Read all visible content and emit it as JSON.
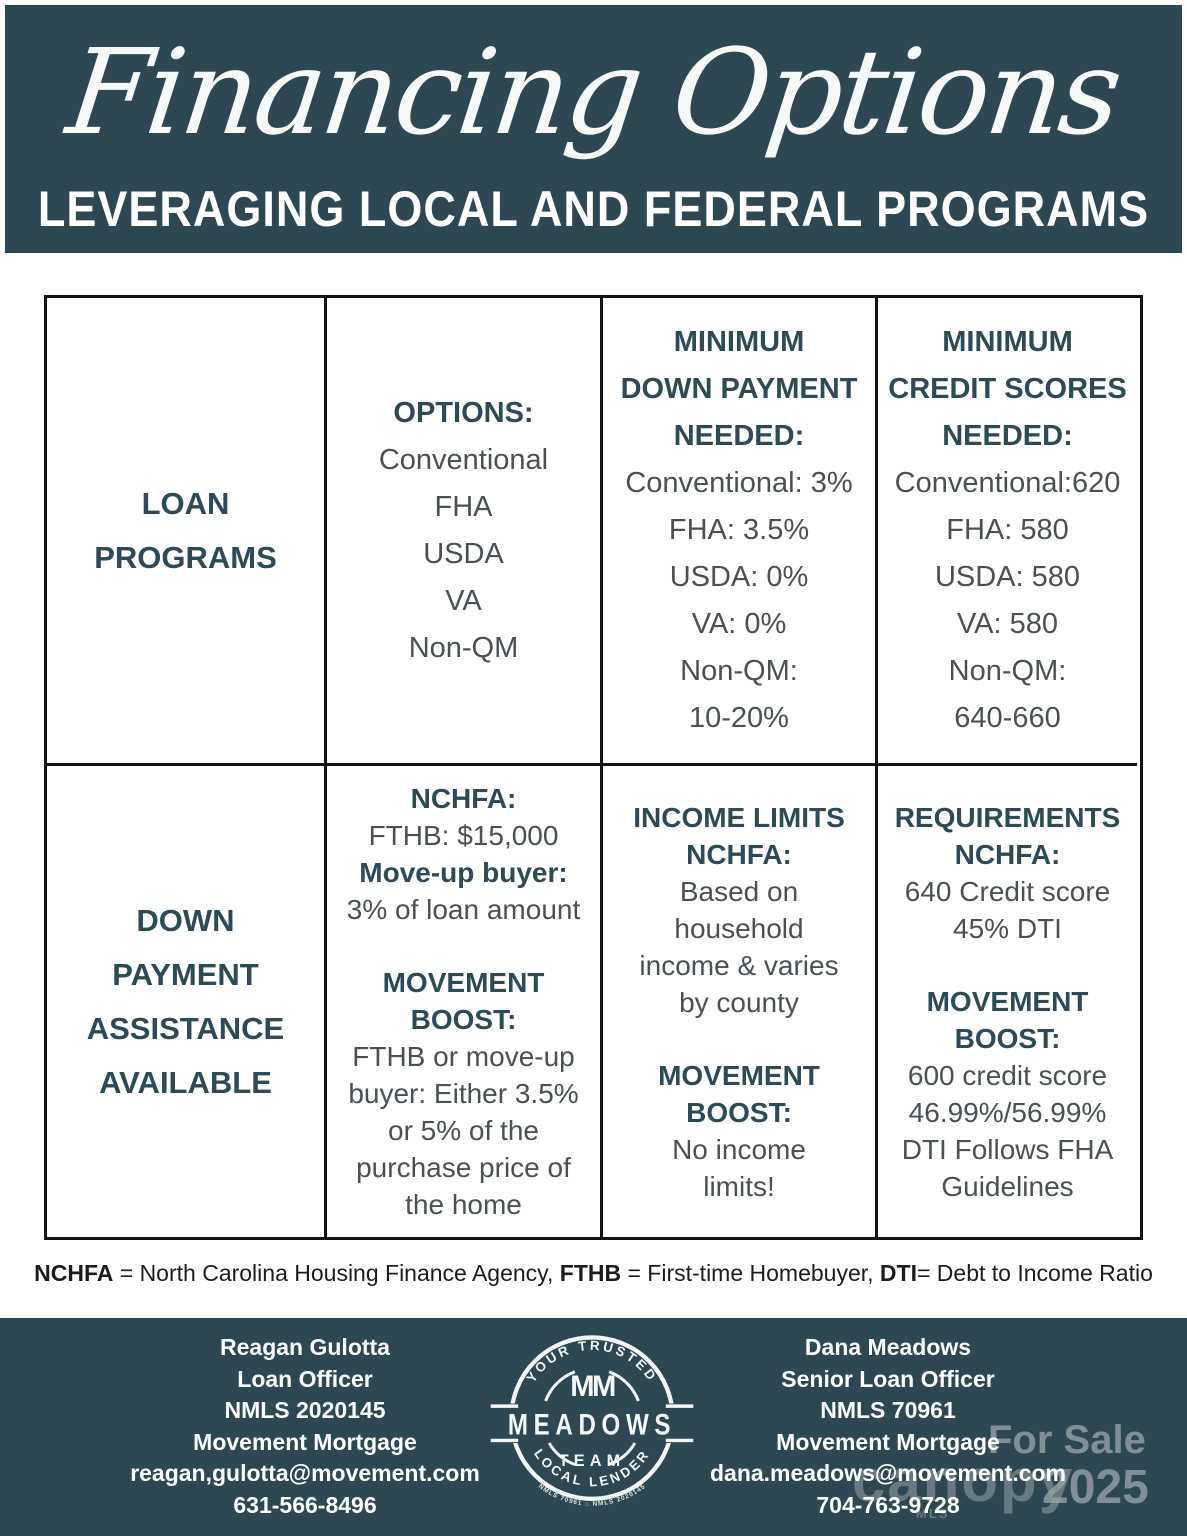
{
  "colors": {
    "accent_teal": "#2e4853",
    "heading_text": "#2d4a59",
    "body_text": "#4a5154",
    "table_border": "#141414",
    "watermark_gray": "#97a1a7"
  },
  "header": {
    "title": "Financing Options",
    "subtitle": "LEVERAGING LOCAL AND FEDERAL PROGRAMS"
  },
  "table": {
    "r1c1": {
      "label": "LOAN PROGRAMS"
    },
    "r1c2": {
      "lines": [
        {
          "t": "OPTIONS:",
          "s": "h"
        },
        {
          "t": "Conventional",
          "s": "r"
        },
        {
          "t": "FHA",
          "s": "r"
        },
        {
          "t": "USDA",
          "s": "r"
        },
        {
          "t": "VA",
          "s": "r"
        },
        {
          "t": "Non-QM",
          "s": "r"
        }
      ]
    },
    "r1c3": {
      "lines": [
        {
          "t": "MINIMUM",
          "s": "h"
        },
        {
          "t": "DOWN PAYMENT",
          "s": "h"
        },
        {
          "t": "NEEDED:",
          "s": "h"
        },
        {
          "t": "Conventional: 3%",
          "s": "r"
        },
        {
          "t": "FHA: 3.5%",
          "s": "r"
        },
        {
          "t": "USDA: 0%",
          "s": "r"
        },
        {
          "t": "VA: 0%",
          "s": "r"
        },
        {
          "t": "Non-QM:",
          "s": "r"
        },
        {
          "t": "10-20%",
          "s": "r"
        }
      ]
    },
    "r1c4": {
      "lines": [
        {
          "t": "MINIMUM",
          "s": "h"
        },
        {
          "t": "CREDIT SCORES",
          "s": "h"
        },
        {
          "t": "NEEDED:",
          "s": "h"
        },
        {
          "t": "Conventional:620",
          "s": "r"
        },
        {
          "t": "FHA: 580",
          "s": "r"
        },
        {
          "t": "USDA: 580",
          "s": "r"
        },
        {
          "t": "VA: 580",
          "s": "r"
        },
        {
          "t": "Non-QM:",
          "s": "r"
        },
        {
          "t": "640-660",
          "s": "r"
        }
      ]
    },
    "r2c1": {
      "label": "DOWN PAYMENT ASSISTANCE AVAILABLE"
    },
    "r2c2": {
      "lines": [
        {
          "t": "NCHFA:",
          "s": "h"
        },
        {
          "t": "FTHB: $15,000",
          "s": "r"
        },
        {
          "t": "Move-up buyer:",
          "s": "b"
        },
        {
          "t": "3% of loan amount",
          "s": "r"
        },
        {
          "t": "",
          "s": "gap"
        },
        {
          "t": "MOVEMENT",
          "s": "h"
        },
        {
          "t": "BOOST:",
          "s": "h"
        },
        {
          "t": "FTHB or move-up",
          "s": "r"
        },
        {
          "t": "buyer: Either 3.5%",
          "s": "r"
        },
        {
          "t": "or 5% of the",
          "s": "r"
        },
        {
          "t": "purchase price of",
          "s": "r"
        },
        {
          "t": "the home",
          "s": "r"
        }
      ]
    },
    "r2c3": {
      "lines": [
        {
          "t": "INCOME LIMITS",
          "s": "h"
        },
        {
          "t": "NCHFA:",
          "s": "h"
        },
        {
          "t": "Based on",
          "s": "r"
        },
        {
          "t": "household",
          "s": "r"
        },
        {
          "t": "income & varies",
          "s": "r"
        },
        {
          "t": "by county",
          "s": "r"
        },
        {
          "t": "",
          "s": "gap"
        },
        {
          "t": "MOVEMENT",
          "s": "h"
        },
        {
          "t": "BOOST:",
          "s": "h"
        },
        {
          "t": "No income",
          "s": "r"
        },
        {
          "t": "limits!",
          "s": "r"
        }
      ]
    },
    "r2c4": {
      "lines": [
        {
          "t": "REQUIREMENTS",
          "s": "h"
        },
        {
          "t": "NCHFA:",
          "s": "h"
        },
        {
          "t": "640 Credit score",
          "s": "r"
        },
        {
          "t": "45% DTI",
          "s": "r"
        },
        {
          "t": "",
          "s": "gap"
        },
        {
          "t": "MOVEMENT",
          "s": "h"
        },
        {
          "t": "BOOST:",
          "s": "h"
        },
        {
          "t": "600 credit score",
          "s": "r"
        },
        {
          "t": "46.99%/56.99%",
          "s": "r"
        },
        {
          "t": "DTI Follows FHA",
          "s": "r"
        },
        {
          "t": "Guidelines",
          "s": "r"
        }
      ]
    }
  },
  "footnote": {
    "segments": [
      {
        "text": "NCHFA"
      },
      {
        "text": " = North Carolina Housing Finance Agency, "
      },
      {
        "text": "FTHB"
      },
      {
        "text": " = First-time Homebuyer, "
      },
      {
        "text": "DTI"
      },
      {
        "text": "= Debt to Income Ratio"
      }
    ]
  },
  "footer": {
    "left": {
      "name": "Reagan Gulotta",
      "title": "Loan Officer",
      "nmls": "NMLS 2020145",
      "company": "Movement Mortgage",
      "email": "reagan,gulotta@movement.com",
      "phone": "631-566-8496"
    },
    "right": {
      "name": "Dana Meadows",
      "title": "Senior Loan Officer",
      "nmls": "NMLS 70961",
      "company": "Movement Mortgage",
      "email": "dana.meadows@movement.com",
      "phone": "704-763-9728"
    },
    "logo": {
      "arc_top": "YOUR TRUSTED",
      "monogram": "MM",
      "name": "MEADOWS",
      "team": "TEAM",
      "arc_bottom": "LOCAL LENDER",
      "fine_print": "NMLS 70961 ⌂ NMLS 2020145"
    },
    "watermark": {
      "for_sale": "For Sale",
      "year": "2025",
      "brand": "canopy",
      "brand_sub": "MLS"
    }
  }
}
